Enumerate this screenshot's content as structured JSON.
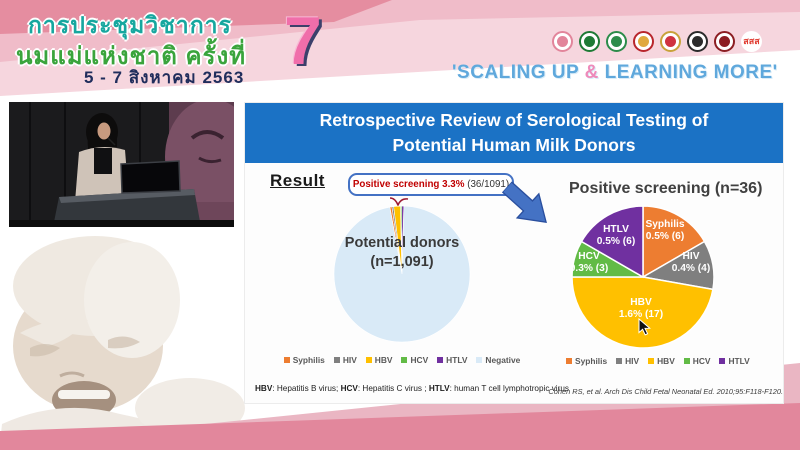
{
  "header": {
    "title_line1": "การประชุมวิชาการ",
    "title_line2": "นมแม่แห่งชาติ ครั้งที่",
    "date_line": "5 - 7 สิงหาคม 2563",
    "edition_number": "7",
    "slogan_prefix": "'SCALING UP ",
    "slogan_amp": "&",
    "slogan_suffix": " LEARNING MORE'",
    "logos": [
      {
        "name": "mother-child-foundation-logo",
        "color": "#e2859b",
        "ring": "#e2859b",
        "text": ""
      },
      {
        "name": "green-health-logo",
        "color": "#1e7a35",
        "ring": "#1e7a35",
        "text": ""
      },
      {
        "name": "green-medical-logo",
        "color": "#2c8c4a",
        "ring": "#2c8c4a",
        "text": ""
      },
      {
        "name": "red-gold-crest-logo",
        "color": "#e0a93e",
        "ring": "#b8262c",
        "text": ""
      },
      {
        "name": "royal-crest-logo",
        "color": "#cf3340",
        "ring": "#c8a23a",
        "text": ""
      },
      {
        "name": "black-white-emblem-logo",
        "color": "#2b2b2b",
        "ring": "#2b2b2b",
        "text": ""
      },
      {
        "name": "dark-red-crest-logo",
        "color": "#8c1d22",
        "ring": "#8c1d22",
        "text": ""
      },
      {
        "name": "thaihealth-logo",
        "color": "#ffffff",
        "ring": "#ffffff",
        "text": "สสส"
      }
    ]
  },
  "slide": {
    "title_line1": "Retrospective Review of Serological Testing of",
    "title_line2": "Potential Human Milk Donors",
    "result_label": "Result",
    "callout_highlight": "Positive screening 3.3%",
    "callout_detail": " (36/1091)",
    "footnote": [
      {
        "term": "HBV",
        "desc": ": Hepatitis B virus; "
      },
      {
        "term": "HCV",
        "desc": ": Hepatitis C virus ; "
      },
      {
        "term": "HTLV",
        "desc": ": human T cell lymphotropic virus"
      }
    ],
    "citation": "Cohen RS, et al. Arch Dis Child Fetal Neonatal Ed. 2010;95:F118-F120."
  },
  "chart_data": [
    {
      "type": "pie",
      "title": "Potential donors (n=1,091)",
      "center_label_line1": "Potential donors",
      "center_label_line2": "(n=1,091)",
      "n_total": 1091,
      "positive_pct": 3.3,
      "positive_count": 36,
      "series": [
        {
          "name": "Syphilis",
          "pct": 0.5
        },
        {
          "name": "HIV",
          "pct": 0.4
        },
        {
          "name": "HBV",
          "pct": 1.6
        },
        {
          "name": "HCV",
          "pct": 0.3
        },
        {
          "name": "HTLV",
          "pct": 0.5
        },
        {
          "name": "Negative",
          "pct": 96.7
        }
      ],
      "legend": [
        "Syphilis",
        "HIV",
        "HBV",
        "HCV",
        "HTLV",
        "Negative"
      ],
      "legend_position": "bottom"
    },
    {
      "type": "pie",
      "title": "Positive screening (n=36)",
      "n_total": 36,
      "slices": [
        {
          "name": "Syphilis",
          "count": 6,
          "pct": "0.5%",
          "label": "0.5% (6)"
        },
        {
          "name": "HIV",
          "count": 4,
          "pct": "0.4%",
          "label": "0.4% (4)"
        },
        {
          "name": "HBV",
          "count": 17,
          "pct": "1.6%",
          "label": "1.6% (17)"
        },
        {
          "name": "HCV",
          "count": 3,
          "pct": "0.3%",
          "label": "0.3% (3)"
        },
        {
          "name": "HTLV",
          "count": 6,
          "pct": "0.5%",
          "label": "0.5% (6)"
        }
      ],
      "legend": [
        "Syphilis",
        "HIV",
        "HBV",
        "HCV",
        "HTLV"
      ],
      "legend_position": "bottom"
    }
  ],
  "colors": {
    "Syphilis": "#ED7D31",
    "HIV": "#7F7F7F",
    "HBV": "#FFC000",
    "HCV": "#62BB46",
    "HTLV": "#7030A0",
    "Negative": "#D9EAF7",
    "title_bar": "#1B72C5",
    "arrow": "#4472C4",
    "callout_red": "#C00000",
    "band_dark": "#E2879C",
    "band_light": "#EAB6C3",
    "header_dark_pink": "#E58DA0",
    "header_mid_pink": "#F0BCC9",
    "header_light_pink": "#F6D6DE",
    "slogan_blue": "#5FA8DC",
    "amp_pink": "#EE8ABA",
    "seven_pink": "#F06EAA",
    "thai_teal": "#17A79F",
    "thai_green": "#3AA43C",
    "thai_navy": "#202D5C"
  }
}
